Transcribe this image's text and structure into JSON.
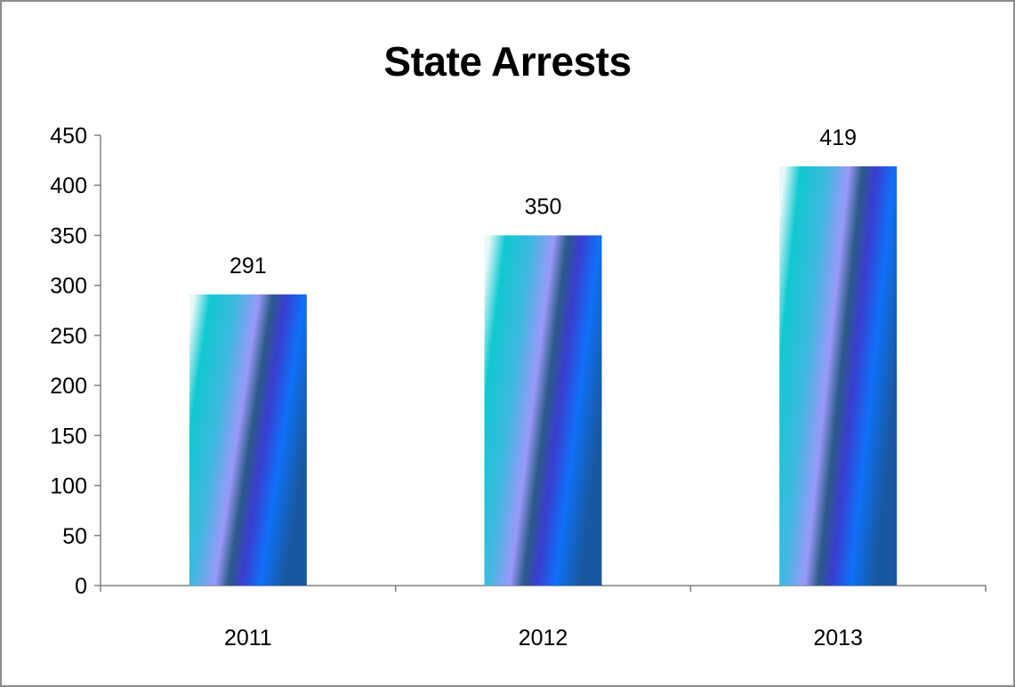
{
  "chart_data": {
    "type": "bar",
    "title": "State Arrests",
    "categories": [
      "2011",
      "2012",
      "2013"
    ],
    "values": [
      291,
      350,
      419
    ],
    "xlabel": "",
    "ylabel": "",
    "ylim": [
      0,
      450
    ],
    "yticks": [
      "0",
      "50",
      "100",
      "150",
      "200",
      "250",
      "300",
      "350",
      "400",
      "450"
    ],
    "data_labels": [
      "291",
      "350",
      "419"
    ],
    "grid": false,
    "legend": "none"
  },
  "colors": {
    "bar_gradient": [
      "#e8f8f8",
      "#10c8d0",
      "#40b8e0",
      "#9a98f8",
      "#2c5a88",
      "#3a3ed0",
      "#1070f8",
      "#1858a0"
    ],
    "axis": "#808080",
    "frame": "#8c8c8c"
  }
}
